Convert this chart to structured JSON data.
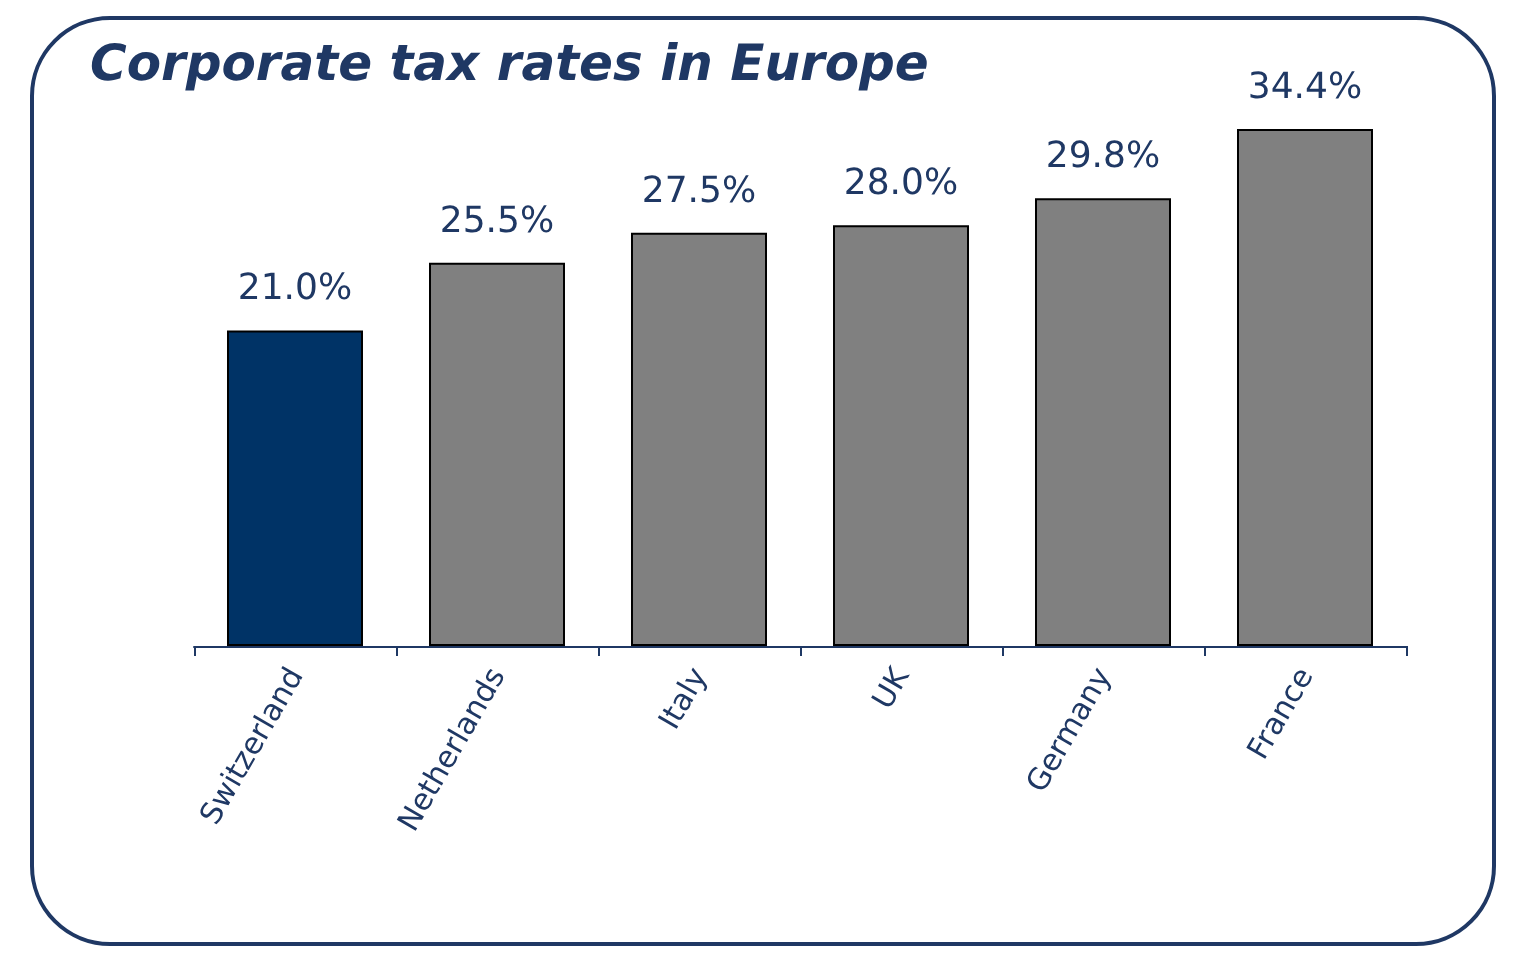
{
  "chart_data": {
    "type": "bar",
    "title": "Corporate tax rates in Europe",
    "categories": [
      "Switzerland",
      "Netherlands",
      "Italy",
      "UK",
      "Germany",
      "France"
    ],
    "values": [
      21.0,
      25.5,
      27.5,
      28.0,
      29.8,
      34.4
    ],
    "colors": [
      "#003366",
      "#808080",
      "#808080",
      "#808080",
      "#808080",
      "#808080"
    ],
    "value_labels": [
      "21.0%",
      "25.5%",
      "27.5%",
      "28.0%",
      "29.8%",
      "34.4%"
    ]
  }
}
